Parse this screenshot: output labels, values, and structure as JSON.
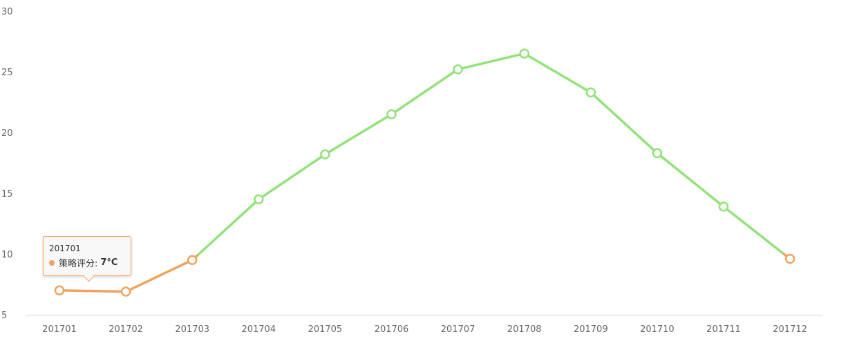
{
  "chart_data": {
    "type": "line",
    "categories": [
      "201701",
      "201702",
      "201703",
      "201704",
      "201705",
      "201706",
      "201707",
      "201708",
      "201709",
      "201710",
      "201711",
      "201712"
    ],
    "values": [
      7,
      6.9,
      9.5,
      14.5,
      18.2,
      21.5,
      25.2,
      26.5,
      23.3,
      18.3,
      13.9,
      9.6
    ],
    "ylim": [
      5,
      30
    ],
    "yticks": [
      5,
      10,
      15,
      20,
      25,
      30
    ],
    "threshold": 10,
    "colors": {
      "below": "#f0a35e",
      "above": "#92e27a",
      "axis": "#c8cfe0"
    },
    "grid": false
  },
  "tooltip": {
    "title": "201701",
    "series_label": "策略评分:",
    "value": "7°C"
  }
}
